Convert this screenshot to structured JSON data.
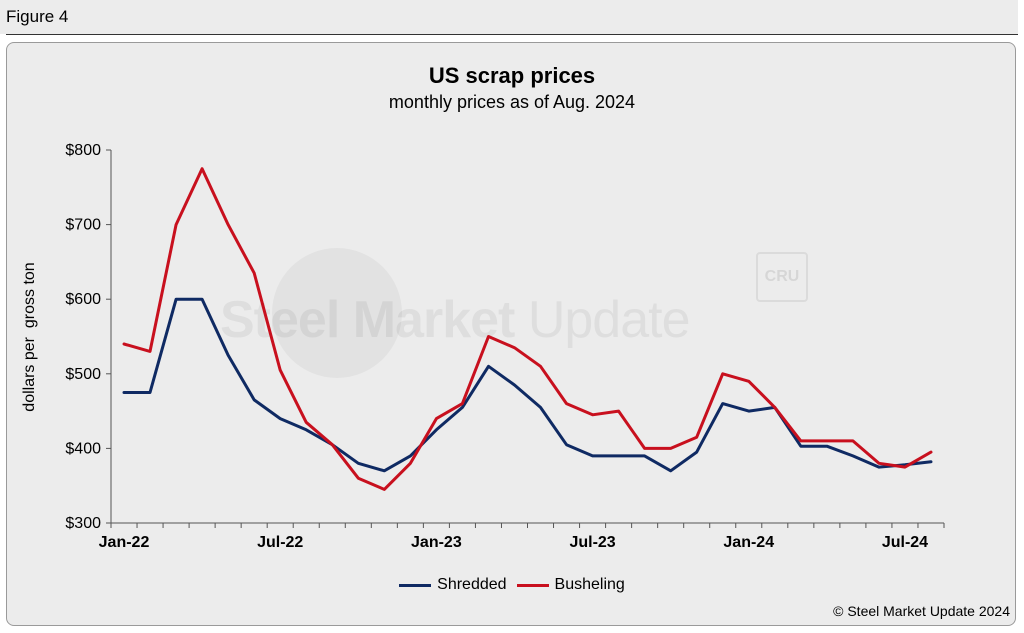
{
  "figure_label": "Figure 4",
  "watermark": {
    "bold": "Steel Market",
    "light": " Update",
    "logo_text": "CRU"
  },
  "copyright": "© Steel Market Update 2024",
  "colors": {
    "shredded": "#0f2a63",
    "busheling": "#c8101e",
    "background": "#ececec"
  },
  "chart_data": {
    "type": "line",
    "title": "US scrap prices",
    "subtitle": "monthly prices as of Aug. 2024",
    "xlabel": "",
    "ylabel": "dollars per  gross ton",
    "ylim": [
      300,
      800
    ],
    "yticks": [
      "$300",
      "$400",
      "$500",
      "$600",
      "$700",
      "$800"
    ],
    "ytick_values": [
      300,
      400,
      500,
      600,
      700,
      800
    ],
    "x": [
      "Jan-22",
      "Feb-22",
      "Mar-22",
      "Apr-22",
      "May-22",
      "Jun-22",
      "Jul-22",
      "Aug-22",
      "Sep-22",
      "Oct-22",
      "Nov-22",
      "Dec-22",
      "Jan-23",
      "Feb-23",
      "Mar-23",
      "Apr-23",
      "May-23",
      "Jun-23",
      "Jul-23",
      "Aug-23",
      "Sep-23",
      "Oct-23",
      "Nov-23",
      "Dec-23",
      "Jan-24",
      "Feb-24",
      "Mar-24",
      "Apr-24",
      "May-24",
      "Jun-24",
      "Jul-24",
      "Aug-24"
    ],
    "xtick_labels": [
      "Jan-22",
      "Jul-22",
      "Jan-23",
      "Jul-23",
      "Jan-24",
      "Jul-24"
    ],
    "xtick_indices": [
      0,
      6,
      12,
      18,
      24,
      30
    ],
    "series": [
      {
        "name": "Shredded",
        "color": "#0f2a63",
        "values": [
          475,
          475,
          600,
          600,
          525,
          465,
          440,
          425,
          405,
          380,
          370,
          390,
          425,
          455,
          510,
          485,
          455,
          405,
          390,
          390,
          390,
          370,
          395,
          460,
          450,
          455,
          403,
          403,
          390,
          375,
          378,
          382
        ]
      },
      {
        "name": "Busheling",
        "color": "#c8101e",
        "values": [
          540,
          530,
          700,
          775,
          700,
          635,
          505,
          435,
          405,
          360,
          345,
          380,
          440,
          460,
          550,
          535,
          510,
          460,
          445,
          450,
          400,
          400,
          415,
          500,
          490,
          455,
          410,
          410,
          410,
          380,
          375,
          395
        ]
      }
    ],
    "grid": false,
    "legend_position": "bottom-center"
  }
}
